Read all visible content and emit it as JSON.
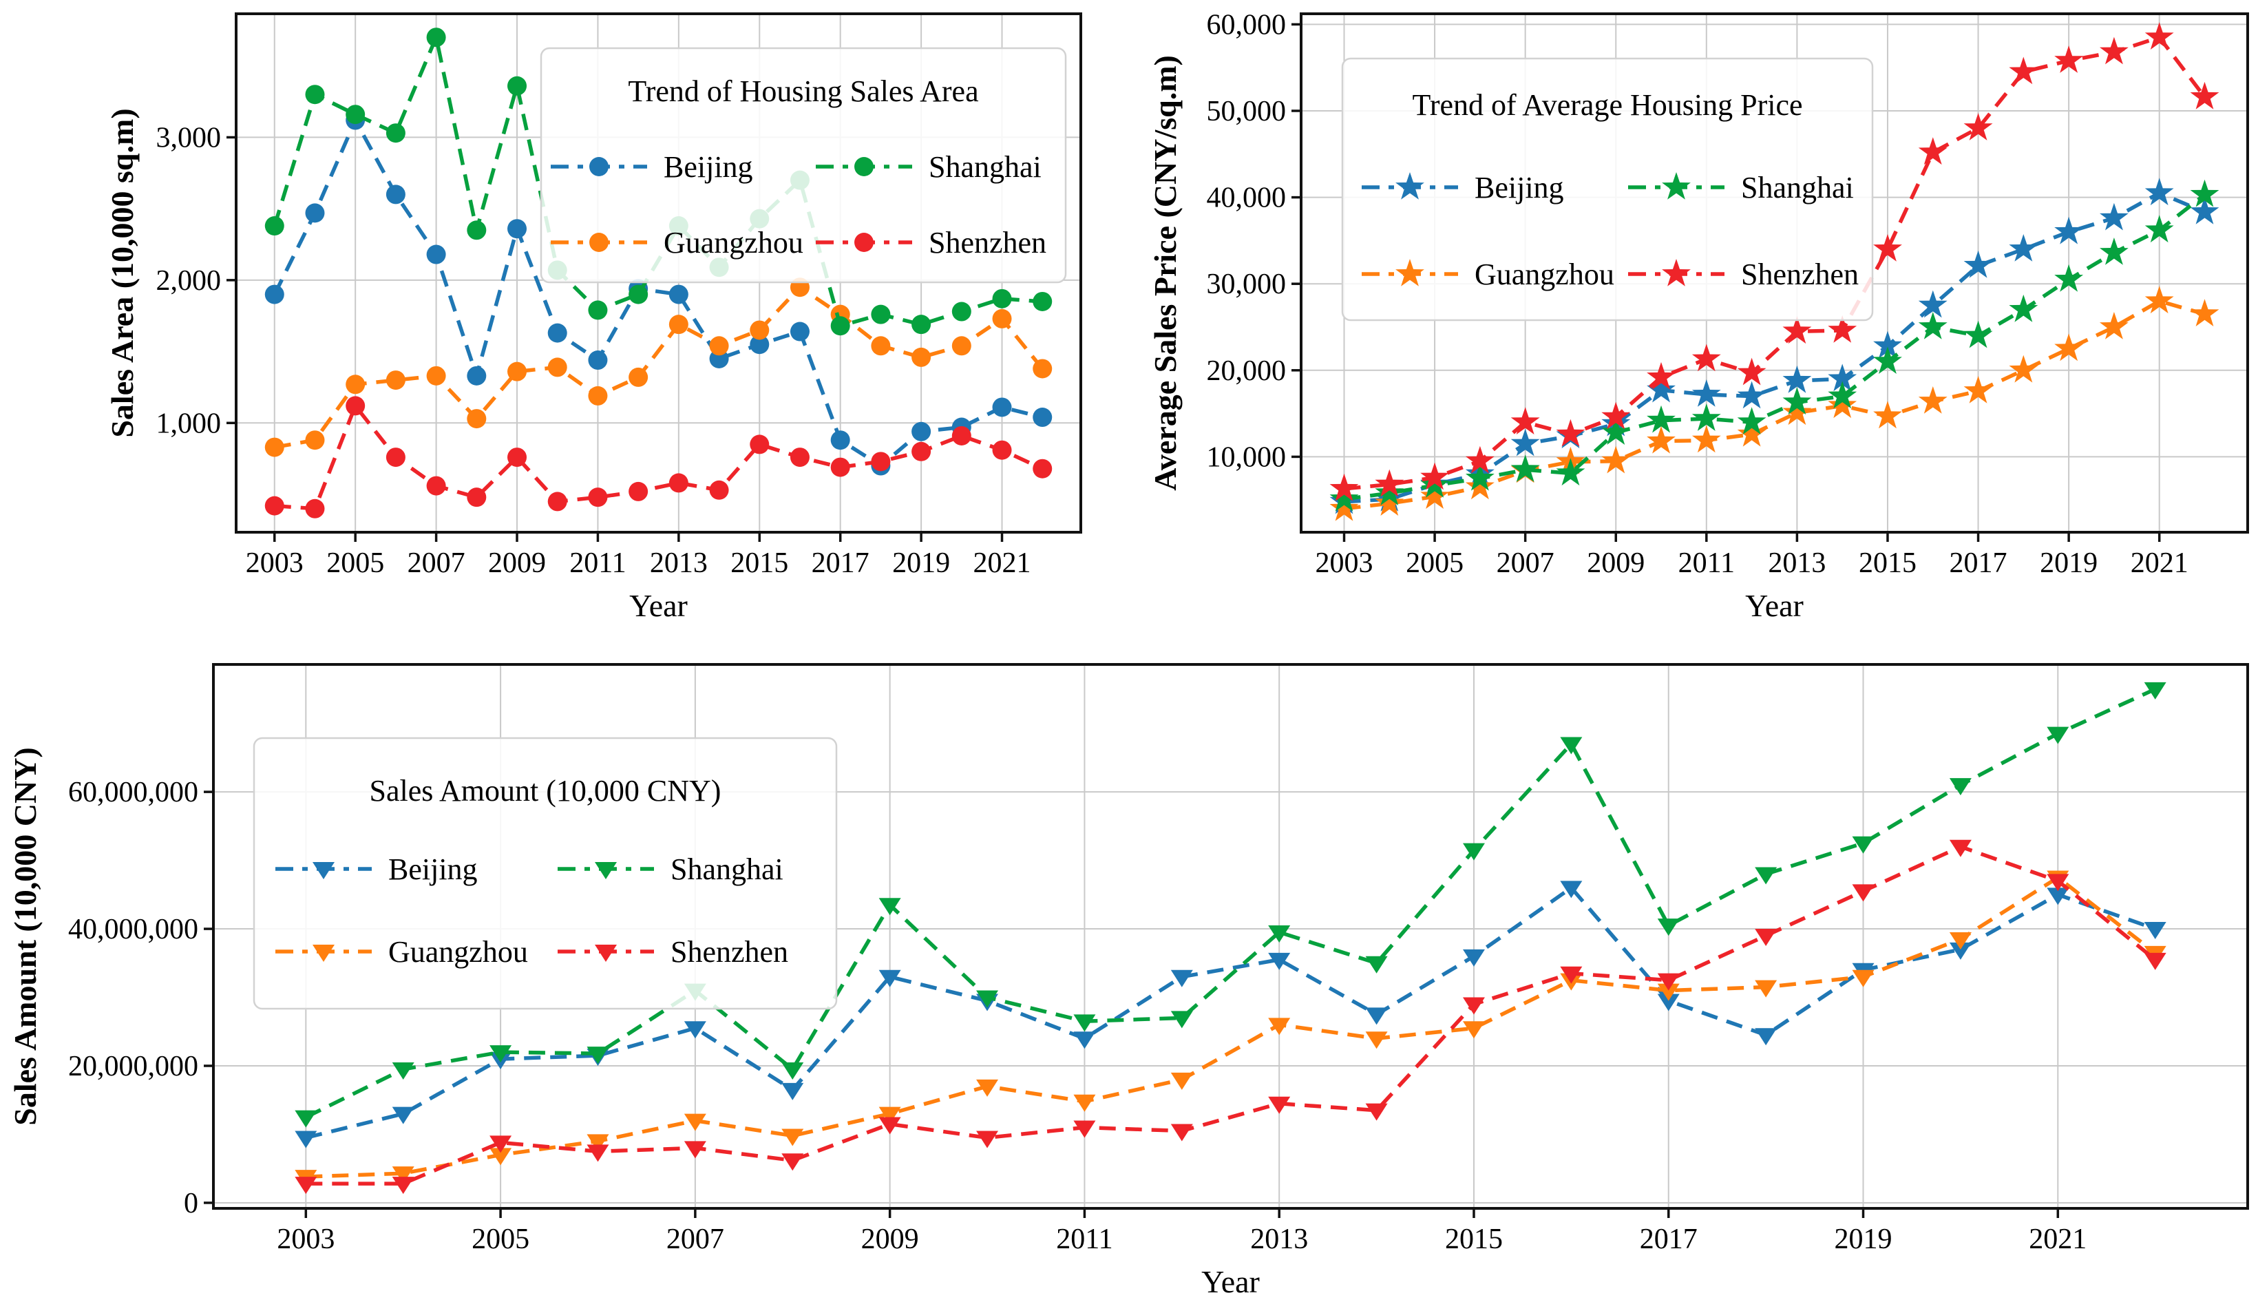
{
  "page": {
    "background": "#ffffff",
    "description": "Three line charts: housing sales area, average housing price, and sales amount for four Chinese cities, 2003-2022"
  },
  "cities": [
    "Beijing",
    "Guangzhou",
    "Shanghai",
    "Shenzhen"
  ],
  "colors": {
    "beijing": "#1f77b4",
    "guangzhou": "#ff7f0e",
    "shanghai": "#06a13e",
    "shenzhen": "#ee2429",
    "grid": "#c9c9c9",
    "spine": "#111111",
    "legend_border": "#d2d2d2"
  },
  "chart_data": [
    {
      "id": "sales-area",
      "type": "line",
      "legend_title": "Trend of Housing Sales Area",
      "xlabel": "Year",
      "ylabel": "Sales Area (10,000 sq.m)",
      "marker": "circle",
      "line_style": "dashed",
      "grid": true,
      "legend_position": "upper right",
      "x": [
        2003,
        2004,
        2005,
        2006,
        2007,
        2008,
        2009,
        2010,
        2011,
        2012,
        2013,
        2014,
        2015,
        2016,
        2017,
        2018,
        2019,
        2020,
        2021,
        2022
      ],
      "x_ticks": [
        2003,
        2005,
        2007,
        2009,
        2011,
        2013,
        2015,
        2017,
        2019,
        2021
      ],
      "x_tick_labels": [
        "2003",
        "2005",
        "2007",
        "2009",
        "2011",
        "2013",
        "2015",
        "2017",
        "2019",
        "2021"
      ],
      "y_ticks": [
        1000,
        2000,
        3000
      ],
      "y_tick_labels": [
        "1,000",
        "2,000",
        "3,000"
      ],
      "xlim": [
        2002.05,
        2022.95
      ],
      "ylim": [
        235,
        3865
      ],
      "series": [
        {
          "name": "Beijing",
          "color": "#1f77b4",
          "values": [
            1900,
            2470,
            3120,
            2600,
            2180,
            1330,
            2360,
            1630,
            1440,
            1940,
            1900,
            1450,
            1550,
            1640,
            880,
            700,
            940,
            970,
            1110,
            1040
          ]
        },
        {
          "name": "Guangzhou",
          "color": "#ff7f0e",
          "values": [
            830,
            880,
            1270,
            1300,
            1330,
            1030,
            1360,
            1390,
            1190,
            1320,
            1690,
            1540,
            1650,
            1950,
            1760,
            1540,
            1460,
            1540,
            1730,
            1380
          ]
        },
        {
          "name": "Shanghai",
          "color": "#06a13e",
          "values": [
            2380,
            3300,
            3160,
            3030,
            3700,
            2350,
            3360,
            2070,
            1790,
            1900,
            2380,
            2090,
            2430,
            2700,
            1680,
            1760,
            1690,
            1780,
            1870,
            1850
          ]
        },
        {
          "name": "Shenzhen",
          "color": "#ee2429",
          "values": [
            420,
            400,
            1120,
            760,
            560,
            480,
            760,
            450,
            480,
            520,
            580,
            530,
            850,
            760,
            690,
            730,
            800,
            910,
            810,
            680
          ]
        }
      ]
    },
    {
      "id": "avg-price",
      "type": "line",
      "legend_title": "Trend of Average Housing Price",
      "xlabel": "Year",
      "ylabel": "Average Sales Price (CNY/sq.m)",
      "marker": "star",
      "line_style": "dashed",
      "grid": true,
      "legend_position": "upper left",
      "x": [
        2003,
        2004,
        2005,
        2006,
        2007,
        2008,
        2009,
        2010,
        2011,
        2012,
        2013,
        2014,
        2015,
        2016,
        2017,
        2018,
        2019,
        2020,
        2021,
        2022
      ],
      "x_ticks": [
        2003,
        2005,
        2007,
        2009,
        2011,
        2013,
        2015,
        2017,
        2019,
        2021
      ],
      "x_tick_labels": [
        "2003",
        "2005",
        "2007",
        "2009",
        "2011",
        "2013",
        "2015",
        "2017",
        "2019",
        "2021"
      ],
      "y_ticks": [
        10000,
        20000,
        30000,
        40000,
        50000,
        60000
      ],
      "y_tick_labels": [
        "10,000",
        "20,000",
        "30,000",
        "40,000",
        "50,000",
        "60,000"
      ],
      "xlim": [
        2002.05,
        2022.95
      ],
      "ylim": [
        1275,
        61225
      ],
      "series": [
        {
          "name": "Beijing",
          "color": "#1f77b4",
          "values": [
            4800,
            5100,
            6800,
            8000,
            11500,
            12400,
            13800,
            17700,
            17200,
            17000,
            18800,
            19000,
            22800,
            27500,
            32100,
            34000,
            36000,
            37600,
            40500,
            38300
          ]
        },
        {
          "name": "Guangzhou",
          "color": "#ff7f0e",
          "values": [
            4000,
            4600,
            5400,
            6500,
            8400,
            9400,
            9500,
            11800,
            11900,
            12600,
            15100,
            15900,
            14700,
            16400,
            17600,
            20000,
            22500,
            25000,
            28000,
            26500
          ]
        },
        {
          "name": "Shanghai",
          "color": "#06a13e",
          "values": [
            5100,
            5800,
            6700,
            7500,
            8500,
            8100,
            12800,
            14200,
            14400,
            14000,
            16300,
            17000,
            21000,
            25000,
            24000,
            27000,
            30500,
            33600,
            36200,
            40300
          ]
        },
        {
          "name": "Shenzhen",
          "color": "#ee2429",
          "values": [
            6300,
            6800,
            7600,
            9500,
            14000,
            12600,
            14600,
            19200,
            21300,
            19700,
            24500,
            24600,
            34000,
            45200,
            48000,
            54500,
            55800,
            56800,
            58500,
            51600
          ]
        }
      ]
    },
    {
      "id": "sales-amount",
      "type": "line",
      "legend_title": "Sales Amount (10,000 CNY)",
      "xlabel": "Year",
      "ylabel": "Sales Amount (10,000 CNY)",
      "marker": "triangle-down",
      "line_style": "dashed",
      "grid": true,
      "legend_position": "upper left",
      "x": [
        2003,
        2004,
        2005,
        2006,
        2007,
        2008,
        2009,
        2010,
        2011,
        2012,
        2013,
        2014,
        2015,
        2016,
        2017,
        2018,
        2019,
        2020,
        2021,
        2022
      ],
      "x_ticks": [
        2003,
        2005,
        2007,
        2009,
        2011,
        2013,
        2015,
        2017,
        2019,
        2021
      ],
      "x_tick_labels": [
        "2003",
        "2005",
        "2007",
        "2009",
        "2011",
        "2013",
        "2015",
        "2017",
        "2019",
        "2021"
      ],
      "y_ticks": [
        0,
        20000000,
        40000000,
        60000000
      ],
      "y_tick_labels": [
        "0",
        "20,000,000",
        "40,000,000",
        "60,000,000"
      ],
      "xlim": [
        2002.05,
        2022.95
      ],
      "ylim": [
        -810000,
        78610000
      ],
      "series": [
        {
          "name": "Beijing",
          "color": "#1f77b4",
          "values": [
            9500000,
            13000000,
            21000000,
            21500000,
            25500000,
            16500000,
            33000000,
            29500000,
            24000000,
            33000000,
            35500000,
            27500000,
            36000000,
            46000000,
            29500000,
            24500000,
            34000000,
            37000000,
            45000000,
            40000000
          ]
        },
        {
          "name": "Guangzhou",
          "color": "#ff7f0e",
          "values": [
            3800000,
            4300000,
            7000000,
            9000000,
            12000000,
            9800000,
            13000000,
            17000000,
            14800000,
            18000000,
            26000000,
            24000000,
            25500000,
            32500000,
            31000000,
            31500000,
            33000000,
            38500000,
            47500000,
            36500000
          ]
        },
        {
          "name": "Shanghai",
          "color": "#06a13e",
          "values": [
            12500000,
            19500000,
            22000000,
            21800000,
            31000000,
            19500000,
            43500000,
            30000000,
            26500000,
            27000000,
            39500000,
            35000000,
            51500000,
            67000000,
            40500000,
            48000000,
            52500000,
            61000000,
            68500000,
            75000000
          ]
        },
        {
          "name": "Shenzhen",
          "color": "#ee2429",
          "values": [
            2800000,
            2800000,
            8800000,
            7500000,
            8000000,
            6200000,
            11500000,
            9500000,
            11000000,
            10500000,
            14500000,
            13500000,
            29000000,
            33500000,
            32500000,
            39000000,
            45500000,
            52000000,
            47000000,
            35500000
          ]
        }
      ]
    }
  ]
}
